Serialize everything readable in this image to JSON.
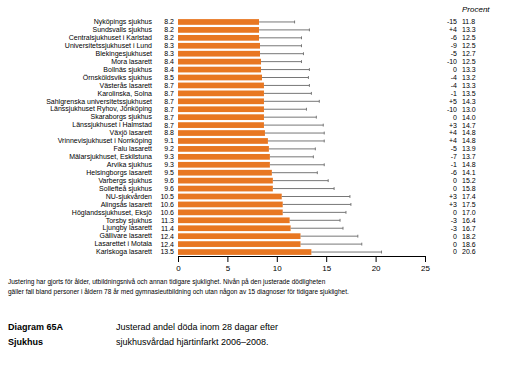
{
  "chart_data": {
    "type": "bar",
    "orientation": "horizontal",
    "title": "Justerad andel döda inom 28 dagar efter",
    "subtitle": "sjukhusvårdad hjärtinfarkt 2006–2008.",
    "captions": [
      "Diagram 65A",
      "Sjukhus"
    ],
    "footnotes": [
      "Justering har gjorts för ålder, utbildningsnivå och annan tidigare sjuklighet. Nivån på den justerade dödligheten",
      "gäller fall bland personer i åldern 78 år med gymnasieutbildning och utan någon av 15 diagnoser för tidigare sjuklighet."
    ],
    "unit_label": "Procent",
    "categories": [
      "Nyköpings sjukhus",
      "Sundsvalls sjukhus",
      "Centralsjukhuset i Karlstad",
      "Universitetssjukhuset i Lund",
      "Blekingesjukhuset",
      "Mora lasarett",
      "Bollnäs sjukhus",
      "Örnsköldsviks sjukhus",
      "Västerås lasarett",
      "Karolinska, Solna",
      "Sahlgrenska universitetssjukhuset",
      "Länssjukhuset Ryhov, Jönköping",
      "Skaraborgs sjukhus",
      "Länssjukhuset i Halmstad",
      "Växjö lasarett",
      "Vrinnevisjukhuset i Norrköping",
      "Falu lasarett",
      "Mälarsjukhuset, Eskilstuna",
      "Arvika sjukhus",
      "Helsingborgs lasarett",
      "Varbergs sjukhus",
      "Sollefteå sjukhus",
      "NU-sjukvården",
      "Alingsås lasarett",
      "Höglandssjukhuset, Eksjö",
      "Torsby sjukhus",
      "Ljungby lasarett",
      "Gällivare lasarett",
      "Lasarettet i Motala",
      "Karlskoga lasarett"
    ],
    "values": [
      8.2,
      8.2,
      8.2,
      8.3,
      8.3,
      8.4,
      8.4,
      8.5,
      8.7,
      8.7,
      8.7,
      8.7,
      8.7,
      8.7,
      8.8,
      9.1,
      9.2,
      9.3,
      9.3,
      9.5,
      9.6,
      9.6,
      10.5,
      10.6,
      10.6,
      11.3,
      11.4,
      12.4,
      12.4,
      13.5
    ],
    "ci_upper": [
      11.8,
      13.3,
      12.5,
      12.5,
      12.7,
      12.5,
      13.3,
      13.2,
      13.3,
      13.5,
      14.3,
      13.0,
      14.0,
      14.7,
      14.8,
      14.8,
      13.9,
      13.7,
      14.8,
      14.1,
      15.2,
      15.8,
      17.4,
      17.5,
      17.0,
      16.4,
      16.7,
      18.2,
      18.6,
      20.6
    ],
    "ci_upper_labels": [
      "11.8",
      "13.3",
      "12.5",
      "12.5",
      "12.7",
      "12.5",
      "13.3",
      "13.2",
      "13.3",
      "13.5",
      "14.3",
      "13.0",
      "14.0",
      "14.7",
      "14.8",
      "14.8",
      "13.9",
      "13.7",
      "14.8",
      "14.1",
      "15.2",
      "15.8",
      "17.4",
      "17.5",
      "17.0",
      "16.4",
      "16.7",
      "18.2",
      "18.6",
      "20.6"
    ],
    "ci_lower_labels": [
      "-15",
      "+4",
      "-6",
      "-9",
      "-5",
      "-10",
      "0",
      "-4",
      "-4",
      "-1",
      "+5",
      "-10",
      "0",
      "+3",
      "+4",
      "+4",
      "-5",
      "-7",
      "-1",
      "-6",
      "0",
      "0",
      "+3",
      "+3",
      "0",
      "-3",
      "-3",
      "0",
      "0",
      "0"
    ],
    "color": "#E87722",
    "data_labels": true,
    "grid": false,
    "xlim": [
      0,
      25
    ],
    "xticks": [
      0,
      5,
      10,
      15,
      20,
      25
    ]
  }
}
